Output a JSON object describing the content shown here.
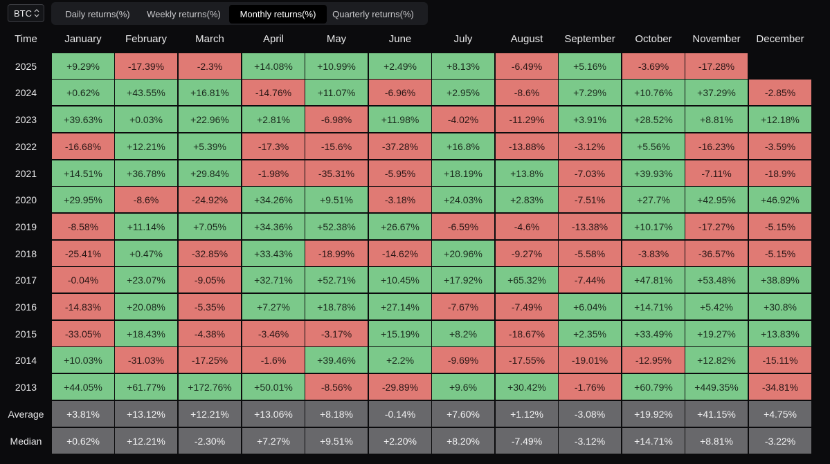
{
  "asset": "BTC",
  "tabs": [
    "Daily returns(%)",
    "Weekly returns(%)",
    "Monthly returns(%)",
    "Quarterly returns(%)"
  ],
  "active_tab": 2,
  "colors": {
    "positive": "#7bc98a",
    "negative": "#e07a74",
    "stat": "#68686b"
  },
  "table": {
    "corner": "Time",
    "months": [
      "January",
      "February",
      "March",
      "April",
      "May",
      "June",
      "July",
      "August",
      "September",
      "October",
      "November",
      "December"
    ],
    "rows": [
      {
        "label": "2025",
        "values": [
          "+9.29%",
          "-17.39%",
          "-2.3%",
          "+14.08%",
          "+10.99%",
          "+2.49%",
          "+8.13%",
          "-6.49%",
          "+5.16%",
          "-3.69%",
          "-17.28%",
          ""
        ]
      },
      {
        "label": "2024",
        "values": [
          "+0.62%",
          "+43.55%",
          "+16.81%",
          "-14.76%",
          "+11.07%",
          "-6.96%",
          "+2.95%",
          "-8.6%",
          "+7.29%",
          "+10.76%",
          "+37.29%",
          "-2.85%"
        ]
      },
      {
        "label": "2023",
        "values": [
          "+39.63%",
          "+0.03%",
          "+22.96%",
          "+2.81%",
          "-6.98%",
          "+11.98%",
          "-4.02%",
          "-11.29%",
          "+3.91%",
          "+28.52%",
          "+8.81%",
          "+12.18%"
        ]
      },
      {
        "label": "2022",
        "values": [
          "-16.68%",
          "+12.21%",
          "+5.39%",
          "-17.3%",
          "-15.6%",
          "-37.28%",
          "+16.8%",
          "-13.88%",
          "-3.12%",
          "+5.56%",
          "-16.23%",
          "-3.59%"
        ]
      },
      {
        "label": "2021",
        "values": [
          "+14.51%",
          "+36.78%",
          "+29.84%",
          "-1.98%",
          "-35.31%",
          "-5.95%",
          "+18.19%",
          "+13.8%",
          "-7.03%",
          "+39.93%",
          "-7.11%",
          "-18.9%"
        ]
      },
      {
        "label": "2020",
        "values": [
          "+29.95%",
          "-8.6%",
          "-24.92%",
          "+34.26%",
          "+9.51%",
          "-3.18%",
          "+24.03%",
          "+2.83%",
          "-7.51%",
          "+27.7%",
          "+42.95%",
          "+46.92%"
        ]
      },
      {
        "label": "2019",
        "values": [
          "-8.58%",
          "+11.14%",
          "+7.05%",
          "+34.36%",
          "+52.38%",
          "+26.67%",
          "-6.59%",
          "-4.6%",
          "-13.38%",
          "+10.17%",
          "-17.27%",
          "-5.15%"
        ]
      },
      {
        "label": "2018",
        "values": [
          "-25.41%",
          "+0.47%",
          "-32.85%",
          "+33.43%",
          "-18.99%",
          "-14.62%",
          "+20.96%",
          "-9.27%",
          "-5.58%",
          "-3.83%",
          "-36.57%",
          "-5.15%"
        ]
      },
      {
        "label": "2017",
        "values": [
          "-0.04%",
          "+23.07%",
          "-9.05%",
          "+32.71%",
          "+52.71%",
          "+10.45%",
          "+17.92%",
          "+65.32%",
          "-7.44%",
          "+47.81%",
          "+53.48%",
          "+38.89%"
        ]
      },
      {
        "label": "2016",
        "values": [
          "-14.83%",
          "+20.08%",
          "-5.35%",
          "+7.27%",
          "+18.78%",
          "+27.14%",
          "-7.67%",
          "-7.49%",
          "+6.04%",
          "+14.71%",
          "+5.42%",
          "+30.8%"
        ]
      },
      {
        "label": "2015",
        "values": [
          "-33.05%",
          "+18.43%",
          "-4.38%",
          "-3.46%",
          "-3.17%",
          "+15.19%",
          "+8.2%",
          "-18.67%",
          "+2.35%",
          "+33.49%",
          "+19.27%",
          "+13.83%"
        ]
      },
      {
        "label": "2014",
        "values": [
          "+10.03%",
          "-31.03%",
          "-17.25%",
          "-1.6%",
          "+39.46%",
          "+2.2%",
          "-9.69%",
          "-17.55%",
          "-19.01%",
          "-12.95%",
          "+12.82%",
          "-15.11%"
        ]
      },
      {
        "label": "2013",
        "values": [
          "+44.05%",
          "+61.77%",
          "+172.76%",
          "+50.01%",
          "-8.56%",
          "-29.89%",
          "+9.6%",
          "+30.42%",
          "-1.76%",
          "+60.79%",
          "+449.35%",
          "-34.81%"
        ]
      }
    ],
    "stats": [
      {
        "label": "Average",
        "values": [
          "+3.81%",
          "+13.12%",
          "+12.21%",
          "+13.06%",
          "+8.18%",
          "-0.14%",
          "+7.60%",
          "+1.12%",
          "-3.08%",
          "+19.92%",
          "+41.15%",
          "+4.75%"
        ]
      },
      {
        "label": "Median",
        "values": [
          "+0.62%",
          "+12.21%",
          "-2.30%",
          "+7.27%",
          "+9.51%",
          "+2.20%",
          "+8.20%",
          "-7.49%",
          "-3.12%",
          "+14.71%",
          "+8.81%",
          "-3.22%"
        ]
      }
    ]
  }
}
